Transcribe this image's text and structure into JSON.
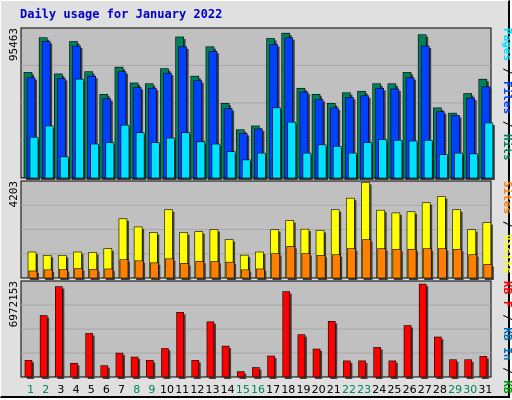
{
  "title": "Daily usage for January 2022",
  "colors": {
    "hits": "#00805c",
    "files": "#0040ff",
    "pages": "#00e0ff",
    "visits": "#ffff00",
    "sites": "#ff8000",
    "kbf": "#ff0000",
    "kbin": "#0070c0",
    "kbout": "#00a000",
    "weekend": "#00805c",
    "weekday": "#000000",
    "panel": "#c0c0c0",
    "background": "#e0e0e0"
  },
  "chart_data": [
    {
      "type": "bar",
      "panel": "hits-files-pages",
      "ymax_label": "95463",
      "ylim": [
        0,
        95463
      ],
      "grid": true,
      "legend_position": "right-vertical",
      "categories": [
        "1",
        "2",
        "3",
        "4",
        "5",
        "6",
        "7",
        "8",
        "9",
        "10",
        "11",
        "12",
        "13",
        "14",
        "15",
        "16",
        "17",
        "18",
        "19",
        "20",
        "21",
        "22",
        "23",
        "24",
        "25",
        "26",
        "27",
        "28",
        "29",
        "30",
        "31"
      ],
      "weekend_days": [
        "1",
        "2",
        "8",
        "9",
        "15",
        "16",
        "22",
        "23",
        "29",
        "30"
      ],
      "legend": [
        "Pages",
        "Files",
        "Hits"
      ],
      "series": [
        {
          "name": "Hits",
          "values": [
            70000,
            93000,
            69000,
            90500,
            70500,
            55500,
            73500,
            63000,
            62500,
            72500,
            93500,
            67500,
            87000,
            49500,
            32000,
            34500,
            92500,
            96000,
            59500,
            55500,
            49500,
            56500,
            57500,
            62500,
            62500,
            70000,
            95000,
            46500,
            43000,
            56000,
            65500
          ]
        },
        {
          "name": "Files",
          "values": [
            66500,
            90500,
            66000,
            87500,
            67500,
            52500,
            70500,
            60000,
            59500,
            69500,
            87000,
            64500,
            84000,
            46000,
            29500,
            32500,
            88500,
            93000,
            57000,
            52000,
            46500,
            53500,
            54500,
            59500,
            59000,
            66500,
            87500,
            44000,
            41500,
            53000,
            60500
          ]
        },
        {
          "name": "Pages",
          "values": [
            27000,
            34500,
            14000,
            65500,
            22500,
            23500,
            35000,
            30000,
            23500,
            26500,
            30000,
            24000,
            22500,
            17500,
            12000,
            16500,
            46500,
            37000,
            16500,
            22000,
            21000,
            16500,
            23500,
            25500,
            25000,
            24500,
            25000,
            15500,
            16500,
            16000,
            36500
          ]
        }
      ]
    },
    {
      "type": "bar",
      "panel": "visits-sites",
      "ymax_label": "4203",
      "ylim": [
        0,
        4203
      ],
      "grid": true,
      "legend_position": "right-vertical",
      "categories": [
        "1",
        "2",
        "3",
        "4",
        "5",
        "6",
        "7",
        "8",
        "9",
        "10",
        "11",
        "12",
        "13",
        "14",
        "15",
        "16",
        "17",
        "18",
        "19",
        "20",
        "21",
        "22",
        "23",
        "24",
        "25",
        "26",
        "27",
        "28",
        "29",
        "30",
        "31"
      ],
      "legend": [
        "Sites",
        "Visits"
      ],
      "series": [
        {
          "name": "Visits",
          "values": [
            1150,
            1000,
            1000,
            1150,
            1130,
            1300,
            2620,
            2260,
            2010,
            3020,
            2010,
            2050,
            2140,
            1700,
            1010,
            1150,
            2140,
            2540,
            2160,
            2100,
            3020,
            3530,
            4230,
            3000,
            2880,
            2930,
            3330,
            3600,
            3020,
            2140,
            2450
          ]
        },
        {
          "name": "Sites",
          "values": [
            310,
            360,
            370,
            420,
            380,
            400,
            810,
            760,
            670,
            850,
            650,
            740,
            730,
            700,
            360,
            400,
            1080,
            1400,
            1080,
            1000,
            1030,
            1300,
            1700,
            1300,
            1270,
            1270,
            1300,
            1300,
            1270,
            1030,
            600
          ]
        }
      ]
    },
    {
      "type": "bar",
      "panel": "kbytes",
      "ymax_label": "6972153",
      "ylim": [
        0,
        6972153
      ],
      "grid": true,
      "legend_position": "right-vertical",
      "categories": [
        "1",
        "2",
        "3",
        "4",
        "5",
        "6",
        "7",
        "8",
        "9",
        "10",
        "11",
        "12",
        "13",
        "14",
        "15",
        "16",
        "17",
        "18",
        "19",
        "20",
        "21",
        "22",
        "23",
        "24",
        "25",
        "26",
        "27",
        "28",
        "29",
        "30",
        "31"
      ],
      "legend": [
        "KB F",
        "KB In",
        "KB Out"
      ],
      "series": [
        {
          "name": "KB F",
          "values": [
            1260000,
            4660000,
            6850000,
            1040000,
            3300000,
            860000,
            1810000,
            1510000,
            1260000,
            2160000,
            4900000,
            1260000,
            4180000,
            2340000,
            410000,
            720000,
            1590000,
            6470000,
            3210000,
            2120000,
            4220000,
            1220000,
            1220000,
            2240000,
            1220000,
            3900000,
            7040000,
            3030000,
            1310000,
            1310000,
            1560000
          ]
        }
      ]
    }
  ],
  "x_axis": {
    "days": [
      "1",
      "2",
      "3",
      "4",
      "5",
      "6",
      "7",
      "8",
      "9",
      "10",
      "11",
      "12",
      "13",
      "14",
      "15",
      "16",
      "17",
      "18",
      "19",
      "20",
      "21",
      "22",
      "23",
      "24",
      "25",
      "26",
      "27",
      "28",
      "29",
      "30",
      "31"
    ]
  },
  "legends": {
    "panel1": [
      {
        "text": "Pages",
        "color": "#00e0ff"
      },
      {
        "text": " / ",
        "color": "#000000"
      },
      {
        "text": "Files",
        "color": "#0040ff"
      },
      {
        "text": " / ",
        "color": "#000000"
      },
      {
        "text": "Hits",
        "color": "#00805c"
      }
    ],
    "panel2": [
      {
        "text": "Sites",
        "color": "#ff8000"
      },
      {
        "text": " / ",
        "color": "#000000"
      },
      {
        "text": "Visits",
        "color": "#ffff00"
      }
    ],
    "panel3": [
      {
        "text": "KB F",
        "color": "#ff0000"
      },
      {
        "text": " / ",
        "color": "#000000"
      },
      {
        "text": "KB In",
        "color": "#0070c0"
      },
      {
        "text": " / ",
        "color": "#000000"
      },
      {
        "text": "KB Out",
        "color": "#00a000"
      }
    ]
  }
}
